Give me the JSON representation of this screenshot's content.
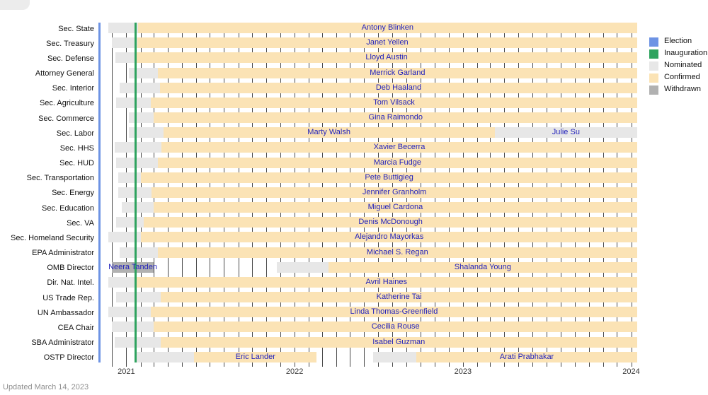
{
  "footer": {
    "updated": "Updated March 14, 2023"
  },
  "colors": {
    "election": "#6d93e4",
    "inauguration": "#2fa35f",
    "nominated": "#e7e7e7",
    "confirmed": "#fbe3b5",
    "withdrawn": "#b1b1b1",
    "name_text": "#2222bb"
  },
  "legend": {
    "items": [
      {
        "label": "Election",
        "key": "election"
      },
      {
        "label": "Inauguration",
        "key": "inauguration"
      },
      {
        "label": "Nominated",
        "key": "nominated"
      },
      {
        "label": "Confirmed",
        "key": "confirmed"
      },
      {
        "label": "Withdrawn",
        "key": "withdrawn"
      }
    ]
  },
  "chart_data": {
    "type": "timeline",
    "x_axis": {
      "start": "2020-11-03",
      "end": "2024-01-14",
      "year_labels": [
        "2021",
        "2022",
        "2023",
        "2024"
      ],
      "month_gridlines": true
    },
    "events": [
      {
        "label": "Election",
        "date": "2020-11-03",
        "key": "election"
      },
      {
        "label": "Inauguration",
        "date": "2021-01-20",
        "key": "inauguration"
      }
    ],
    "rows": [
      {
        "office": "Sec. State",
        "segments": [
          {
            "status": "nominated",
            "start": "2020-11-23",
            "end": "2021-01-26"
          },
          {
            "status": "confirmed",
            "start": "2021-01-26",
            "end": "2024-01-14",
            "label": "Antony Blinken"
          }
        ]
      },
      {
        "office": "Sec. Treasury",
        "segments": [
          {
            "status": "nominated",
            "start": "2020-11-30",
            "end": "2021-01-25"
          },
          {
            "status": "confirmed",
            "start": "2021-01-25",
            "end": "2024-01-14",
            "label": "Janet Yellen"
          }
        ]
      },
      {
        "office": "Sec. Defense",
        "segments": [
          {
            "status": "nominated",
            "start": "2020-12-08",
            "end": "2021-01-22"
          },
          {
            "status": "confirmed",
            "start": "2021-01-22",
            "end": "2024-01-14",
            "label": "Lloyd Austin"
          }
        ]
      },
      {
        "office": "Attorney General",
        "segments": [
          {
            "status": "nominated",
            "start": "2021-01-07",
            "end": "2021-03-10"
          },
          {
            "status": "confirmed",
            "start": "2021-03-10",
            "end": "2024-01-14",
            "label": "Merrick Garland"
          }
        ]
      },
      {
        "office": "Sec. Interior",
        "segments": [
          {
            "status": "nominated",
            "start": "2020-12-17",
            "end": "2021-03-15"
          },
          {
            "status": "confirmed",
            "start": "2021-03-15",
            "end": "2024-01-14",
            "label": "Deb Haaland"
          }
        ]
      },
      {
        "office": "Sec. Agriculture",
        "segments": [
          {
            "status": "nominated",
            "start": "2020-12-10",
            "end": "2021-02-23"
          },
          {
            "status": "confirmed",
            "start": "2021-02-23",
            "end": "2024-01-14",
            "label": "Tom Vilsack"
          }
        ]
      },
      {
        "office": "Sec. Commerce",
        "segments": [
          {
            "status": "nominated",
            "start": "2021-01-07",
            "end": "2021-03-02"
          },
          {
            "status": "confirmed",
            "start": "2021-03-02",
            "end": "2024-01-14",
            "label": "Gina Raimondo"
          }
        ]
      },
      {
        "office": "Sec. Labor",
        "segments": [
          {
            "status": "nominated",
            "start": "2021-01-07",
            "end": "2021-03-22"
          },
          {
            "status": "confirmed",
            "start": "2021-03-22",
            "end": "2023-03-11",
            "label": "Marty Walsh"
          },
          {
            "status": "nominated",
            "start": "2023-03-11",
            "end": "2024-01-14",
            "label": "Julie Su"
          }
        ]
      },
      {
        "office": "Sec. HHS",
        "segments": [
          {
            "status": "nominated",
            "start": "2020-12-07",
            "end": "2021-03-18"
          },
          {
            "status": "confirmed",
            "start": "2021-03-18",
            "end": "2024-01-14",
            "label": "Xavier Becerra"
          }
        ]
      },
      {
        "office": "Sec. HUD",
        "segments": [
          {
            "status": "nominated",
            "start": "2020-12-10",
            "end": "2021-03-10"
          },
          {
            "status": "confirmed",
            "start": "2021-03-10",
            "end": "2024-01-14",
            "label": "Marcia Fudge"
          }
        ]
      },
      {
        "office": "Sec. Transportation",
        "segments": [
          {
            "status": "nominated",
            "start": "2020-12-15",
            "end": "2021-02-02"
          },
          {
            "status": "confirmed",
            "start": "2021-02-02",
            "end": "2024-01-14",
            "label": "Pete Buttigieg"
          }
        ]
      },
      {
        "office": "Sec. Energy",
        "segments": [
          {
            "status": "nominated",
            "start": "2020-12-15",
            "end": "2021-02-25"
          },
          {
            "status": "confirmed",
            "start": "2021-02-25",
            "end": "2024-01-14",
            "label": "Jennifer Granholm"
          }
        ]
      },
      {
        "office": "Sec. Education",
        "segments": [
          {
            "status": "nominated",
            "start": "2020-12-22",
            "end": "2021-03-01"
          },
          {
            "status": "confirmed",
            "start": "2021-03-01",
            "end": "2024-01-14",
            "label": "Miguel Cardona"
          }
        ]
      },
      {
        "office": "Sec. VA",
        "segments": [
          {
            "status": "nominated",
            "start": "2020-12-10",
            "end": "2021-02-08"
          },
          {
            "status": "confirmed",
            "start": "2021-02-08",
            "end": "2024-01-14",
            "label": "Denis McDonough"
          }
        ]
      },
      {
        "office": "Sec. Homeland Security",
        "segments": [
          {
            "status": "nominated",
            "start": "2020-11-23",
            "end": "2021-02-02"
          },
          {
            "status": "confirmed",
            "start": "2021-02-02",
            "end": "2024-01-14",
            "label": "Alejandro Mayorkas"
          }
        ]
      },
      {
        "office": "EPA Administrator",
        "segments": [
          {
            "status": "nominated",
            "start": "2020-12-17",
            "end": "2021-03-10"
          },
          {
            "status": "confirmed",
            "start": "2021-03-10",
            "end": "2024-01-14",
            "label": "Michael S. Regan"
          }
        ]
      },
      {
        "office": "OMB Director",
        "segments": [
          {
            "status": "withdrawn",
            "start": "2020-11-30",
            "end": "2021-03-02",
            "label": "Neera Tanden"
          },
          {
            "status": "nominated",
            "start": "2021-11-24",
            "end": "2022-03-15"
          },
          {
            "status": "confirmed",
            "start": "2022-03-15",
            "end": "2024-01-14",
            "label": "Shalanda Young"
          }
        ]
      },
      {
        "office": "Dir. Nat. Intel.",
        "segments": [
          {
            "status": "nominated",
            "start": "2020-11-23",
            "end": "2021-01-21"
          },
          {
            "status": "confirmed",
            "start": "2021-01-21",
            "end": "2024-01-14",
            "label": "Avril Haines"
          }
        ]
      },
      {
        "office": "US Trade Rep.",
        "segments": [
          {
            "status": "nominated",
            "start": "2020-12-10",
            "end": "2021-03-17"
          },
          {
            "status": "confirmed",
            "start": "2021-03-17",
            "end": "2024-01-14",
            "label": "Katherine Tai"
          }
        ]
      },
      {
        "office": "UN Ambassador",
        "segments": [
          {
            "status": "nominated",
            "start": "2020-11-23",
            "end": "2021-02-23"
          },
          {
            "status": "confirmed",
            "start": "2021-02-23",
            "end": "2024-01-14",
            "label": "Linda Thomas-Greenfield"
          }
        ]
      },
      {
        "office": "CEA Chair",
        "segments": [
          {
            "status": "nominated",
            "start": "2020-11-30",
            "end": "2021-03-02"
          },
          {
            "status": "confirmed",
            "start": "2021-03-02",
            "end": "2024-01-14",
            "label": "Cecilia Rouse"
          }
        ]
      },
      {
        "office": "SBA Administrator",
        "segments": [
          {
            "status": "nominated",
            "start": "2020-12-07",
            "end": "2021-03-16"
          },
          {
            "status": "confirmed",
            "start": "2021-03-16",
            "end": "2024-01-14",
            "label": "Isabel Guzman"
          }
        ]
      },
      {
        "office": "OSTP Director",
        "segments": [
          {
            "status": "nominated",
            "start": "2021-01-20",
            "end": "2021-05-28"
          },
          {
            "status": "confirmed",
            "start": "2021-05-28",
            "end": "2022-02-18",
            "label": "Eric Lander"
          },
          {
            "status": "nominated",
            "start": "2022-06-21",
            "end": "2022-09-22"
          },
          {
            "status": "confirmed",
            "start": "2022-09-22",
            "end": "2024-01-14",
            "label": "Arati Prabhakar"
          }
        ]
      }
    ]
  }
}
